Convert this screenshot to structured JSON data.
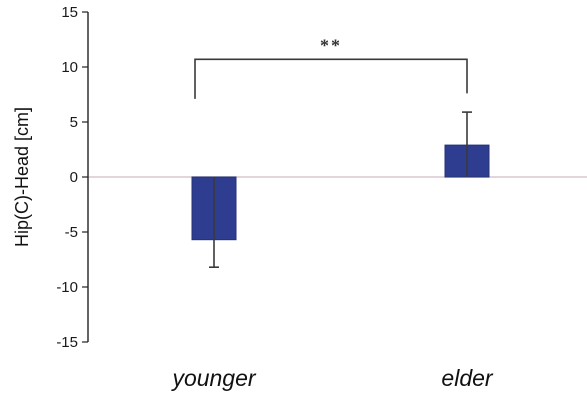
{
  "chart_data": {
    "type": "bar",
    "categories": [
      "younger",
      "elder"
    ],
    "values": [
      -5.7,
      2.9
    ],
    "error_bars": [
      2.5,
      3.0
    ],
    "title": "",
    "xlabel": "",
    "ylabel": "Hip(C)-Head [cm]",
    "ylim": [
      -15,
      15
    ],
    "yticks": [
      "15",
      "10",
      "5",
      "0",
      "-5",
      "-10",
      "-15"
    ],
    "significance": {
      "between": [
        "younger",
        "elder"
      ],
      "label": "**"
    },
    "grid": false,
    "legend": "none",
    "colors": {
      "bar": "#2e3d8f",
      "bar_edge": "#243275",
      "zero_line": "#d9c7cf",
      "axis": "#222222",
      "error": "#3a3a3a",
      "bracket": "#3a3a3a"
    }
  }
}
